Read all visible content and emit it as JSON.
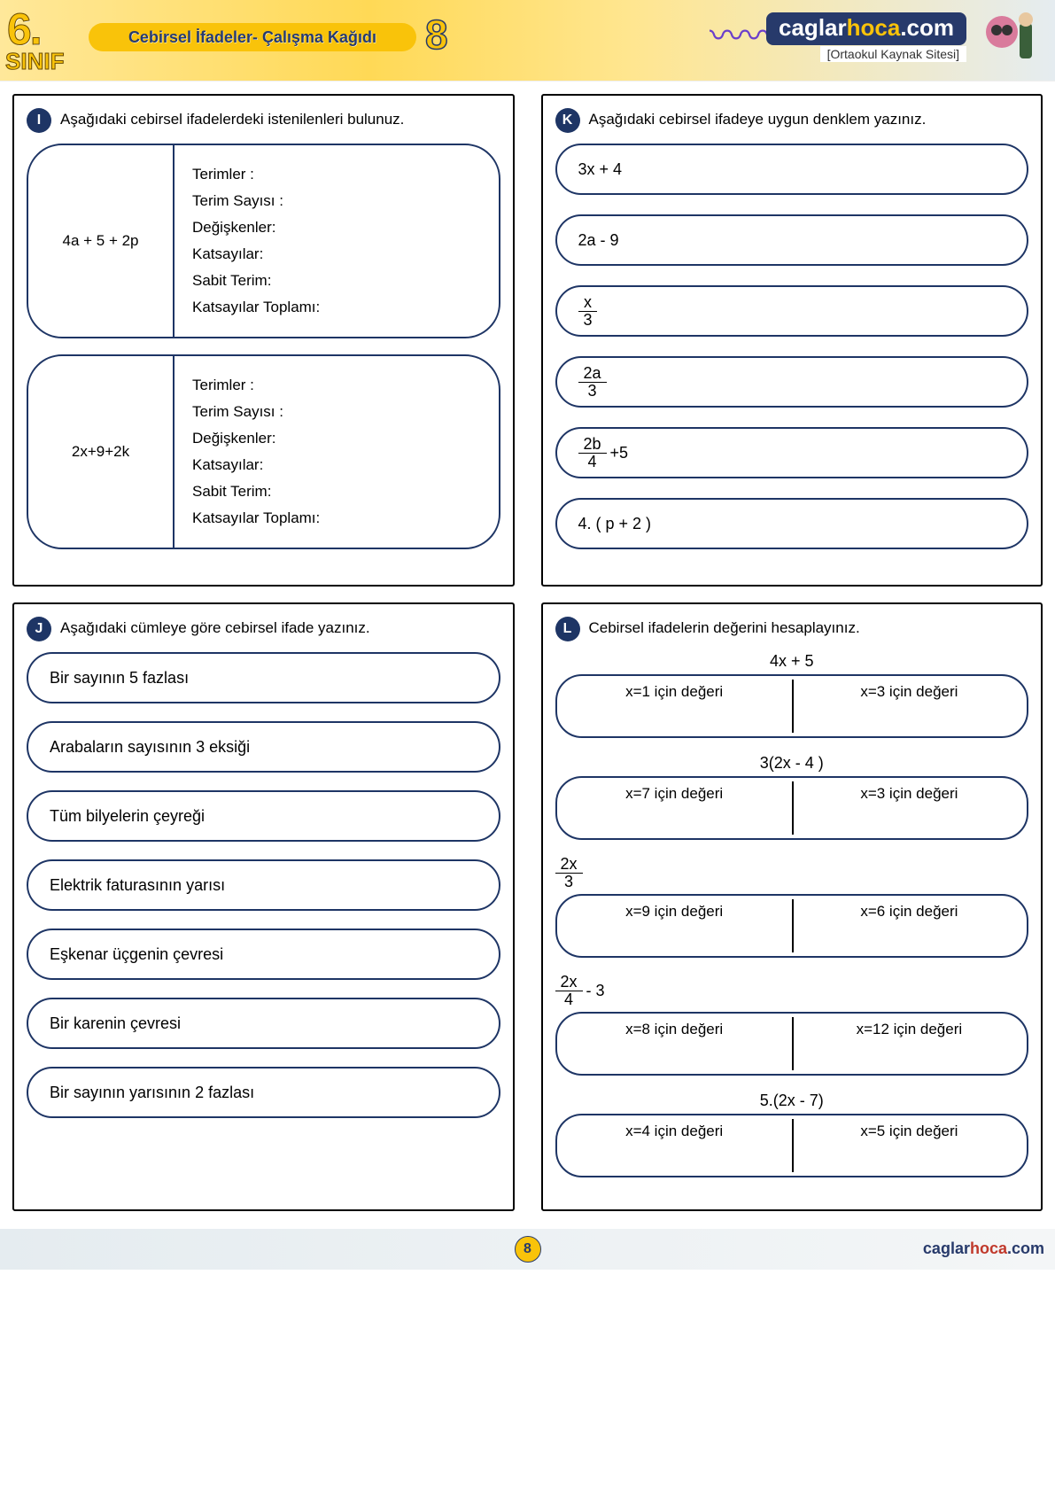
{
  "header": {
    "grade_number": "6.",
    "grade_label": "SINIF",
    "title": "Cebirsel İfadeler- Çalışma Kağıdı",
    "sheet_number": "8",
    "brand_pre": "caglar",
    "brand_mid": "hoca",
    "brand_post": ".com",
    "brand_sub": "[Ortaokul Kaynak Sitesi]"
  },
  "panel_I": {
    "letter": "I",
    "prompt": "Aşağıdaki cebirsel ifadelerdeki istenilenleri bulunuz.",
    "boxes": [
      {
        "expression": "4a + 5 + 2p",
        "labels": [
          "Terimler :",
          "Terim Sayısı :",
          "Değişkenler:",
          "Katsayılar:",
          "Sabit Terim:",
          "Katsayılar Toplamı:"
        ]
      },
      {
        "expression": "2x+9+2k",
        "labels": [
          "Terimler :",
          "Terim Sayısı :",
          "Değişkenler:",
          "Katsayılar:",
          "Sabit Terim:",
          "Katsayılar Toplamı:"
        ]
      }
    ]
  },
  "panel_J": {
    "letter": "J",
    "prompt": "Aşağıdaki cümleye göre cebirsel ifade yazınız.",
    "items": [
      "Bir sayının 5 fazlası",
      "Arabaların sayısının 3 eksiği",
      "Tüm bilyelerin çeyreği",
      "Elektrik faturasının yarısı",
      "Eşkenar üçgenin çevresi",
      "Bir karenin çevresi",
      "Bir sayının yarısının 2 fazlası"
    ]
  },
  "panel_K": {
    "letter": "K",
    "prompt": "Aşağıdaki  cebirsel ifadeye uygun denklem yazınız.",
    "items": [
      {
        "type": "text",
        "value": "3x + 4"
      },
      {
        "type": "text",
        "value": "2a - 9"
      },
      {
        "type": "frac",
        "num": "x",
        "den": "3",
        "suffix": ""
      },
      {
        "type": "frac",
        "num": "2a",
        "den": "3",
        "suffix": ""
      },
      {
        "type": "frac",
        "num": "2b",
        "den": "4",
        "suffix": "+5"
      },
      {
        "type": "text",
        "value": "4. ( p + 2 )"
      }
    ]
  },
  "panel_L": {
    "letter": "L",
    "prompt": "Cebirsel ifadelerin değerini hesaplayınız.",
    "groups": [
      {
        "title": {
          "type": "text",
          "value": "4x + 5"
        },
        "left": "x=1 için değeri",
        "right": "x=3 için değeri"
      },
      {
        "title": {
          "type": "text",
          "value": "3(2x - 4 )"
        },
        "left": "x=7 için değeri",
        "right": "x=3 için değeri"
      },
      {
        "title": {
          "type": "frac",
          "num": "2x",
          "den": "3",
          "suffix": ""
        },
        "left": "x=9 için değeri",
        "right": "x=6 için değeri"
      },
      {
        "title": {
          "type": "frac",
          "num": "2x",
          "den": "4",
          "suffix": "- 3"
        },
        "left": "x=8 için değeri",
        "right": "x=12 için değeri"
      },
      {
        "title": {
          "type": "text",
          "value": "5.(2x - 7)"
        },
        "left": "x=4 için değeri",
        "right": "x=5 için değeri"
      }
    ]
  },
  "footer": {
    "page_number": "8",
    "site_pre": "caglar",
    "site_mid": "hoca",
    "site_post": ".com"
  },
  "colors": {
    "navy": "#1e3565",
    "gold": "#f9c30a"
  }
}
